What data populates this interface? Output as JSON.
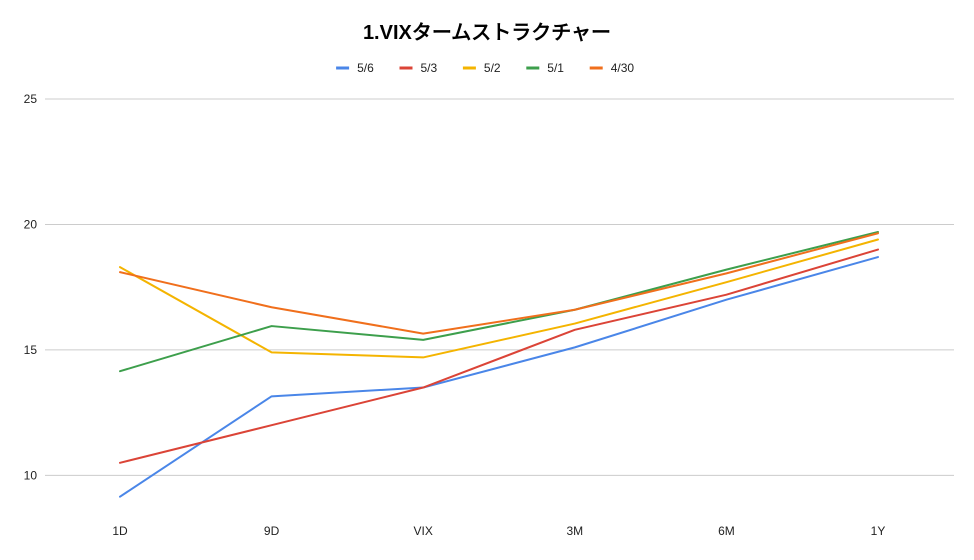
{
  "chart_data": {
    "type": "line",
    "title": "1.VIXタームストラクチャー",
    "xlabel": "",
    "ylabel": "",
    "categories": [
      "1D",
      "9D",
      "VIX",
      "3M",
      "6M",
      "1Y"
    ],
    "ylim": [
      8.3,
      25
    ],
    "yticks": [
      10,
      15,
      20,
      25
    ],
    "grid": true,
    "legend_position": "top",
    "series": [
      {
        "name": "5/6",
        "color": "#4a86e8",
        "values": [
          9.15,
          13.15,
          13.5,
          15.1,
          17.0,
          18.7
        ]
      },
      {
        "name": "5/3",
        "color": "#db4437",
        "values": [
          10.5,
          12.0,
          13.5,
          15.8,
          17.2,
          19.0
        ]
      },
      {
        "name": "5/2",
        "color": "#f4b400",
        "values": [
          18.3,
          14.9,
          14.7,
          16.05,
          17.7,
          19.4
        ]
      },
      {
        "name": "5/1",
        "color": "#3d9f4c",
        "values": [
          14.15,
          15.95,
          15.4,
          16.6,
          18.2,
          19.7
        ]
      },
      {
        "name": "4/30",
        "color": "#f06f1c",
        "values": [
          18.1,
          16.7,
          15.65,
          16.6,
          18.05,
          19.65
        ]
      }
    ]
  }
}
